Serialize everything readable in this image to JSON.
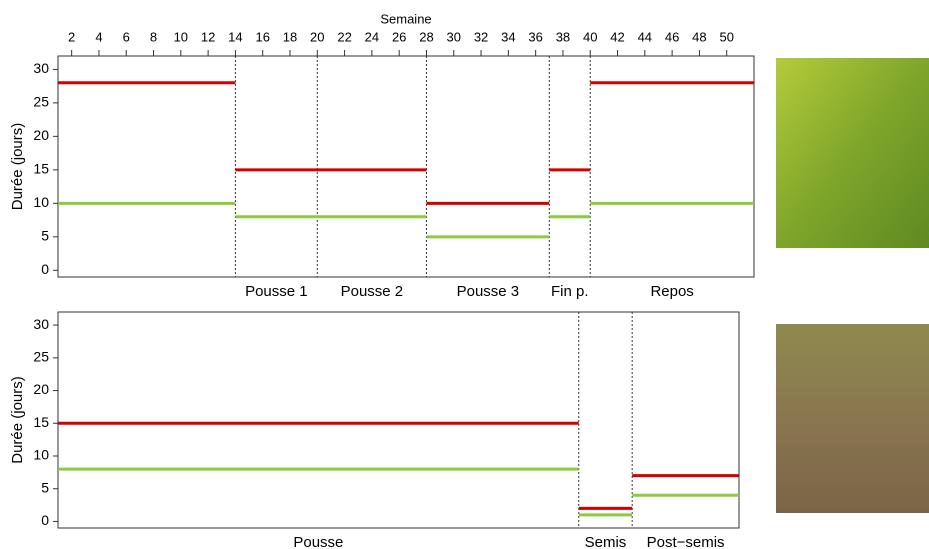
{
  "chart_data": [
    {
      "type": "segments",
      "x_label": "Semaine",
      "y_label": "Durée (jours)",
      "xlim": [
        1,
        52
      ],
      "xticks": [
        2,
        4,
        6,
        8,
        10,
        12,
        14,
        16,
        18,
        20,
        22,
        24,
        26,
        28,
        30,
        32,
        34,
        36,
        38,
        40,
        42,
        44,
        46,
        48,
        50
      ],
      "ylim": [
        -1,
        32
      ],
      "yticks": [
        0,
        5,
        10,
        15,
        20,
        25,
        30
      ],
      "breaks": [
        1,
        14,
        28,
        37,
        40,
        52
      ],
      "series": [
        {
          "color": "#d40000",
          "values": [
            28,
            15,
            10,
            15,
            28
          ]
        },
        {
          "color": "#8ccc3c",
          "values": [
            10,
            8,
            5,
            8,
            10
          ]
        }
      ],
      "vlines": [
        14,
        20,
        28,
        37,
        40
      ],
      "phases": [
        {
          "label": "Pousse 1",
          "start": 14,
          "end": 20
        },
        {
          "label": "Pousse 2",
          "start": 20,
          "end": 28
        },
        {
          "label": "Pousse 3",
          "start": 28,
          "end": 37
        },
        {
          "label": "Fin p.",
          "start": 37,
          "end": 40
        },
        {
          "label": "Repos",
          "start": 40,
          "end": 52
        }
      ]
    },
    {
      "type": "segments",
      "y_label": "Durée (jours)",
      "xlim": [
        1,
        52
      ],
      "ylim": [
        -1,
        32
      ],
      "yticks": [
        0,
        5,
        10,
        15,
        20,
        25,
        30
      ],
      "breaks": [
        1,
        40,
        44,
        52
      ],
      "series": [
        {
          "color": "#d40000",
          "values": [
            15,
            2,
            7
          ]
        },
        {
          "color": "#8ccc3c",
          "values": [
            8,
            1,
            4
          ]
        }
      ],
      "vlines": [
        40,
        44
      ],
      "phases": [
        {
          "label": "Pousse",
          "start": 1,
          "end": 40
        },
        {
          "label": "Semis",
          "start": 40,
          "end": 44
        },
        {
          "label": "Post−semis",
          "start": 44,
          "end": 52
        }
      ]
    }
  ]
}
